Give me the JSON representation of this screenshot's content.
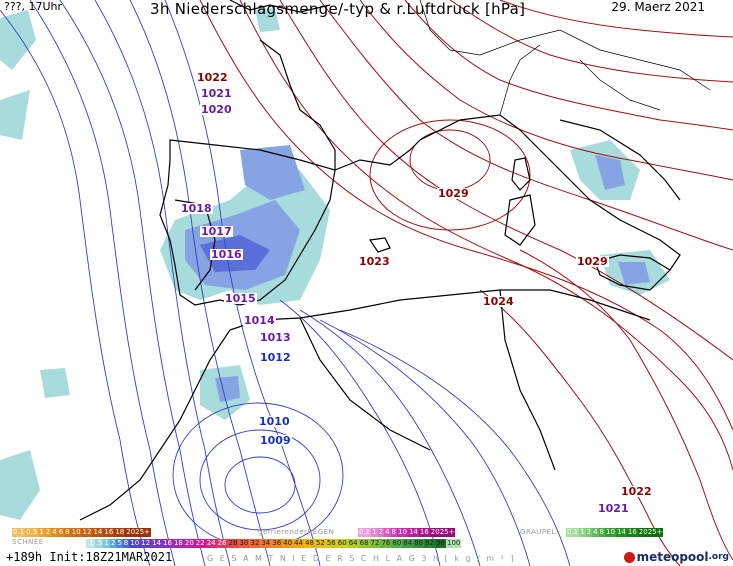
{
  "header": {
    "left": "???, 17Uhr",
    "center": "3h Niederschlagsmenge/-typ & r.Luftdruck [hPa]",
    "right": "29. Maerz 2021"
  },
  "isobar_labels": [
    {
      "text": "1022",
      "tone": "red"
    },
    {
      "text": "1021",
      "tone": "purple"
    },
    {
      "text": "1020",
      "tone": "purple"
    },
    {
      "text": "1018",
      "tone": "purple"
    },
    {
      "text": "1017",
      "tone": "purple"
    },
    {
      "text": "1016",
      "tone": "purple"
    },
    {
      "text": "1015",
      "tone": "purple"
    },
    {
      "text": "1014",
      "tone": "purple"
    },
    {
      "text": "1013",
      "tone": "purple"
    },
    {
      "text": "1012",
      "tone": "blue"
    },
    {
      "text": "1010",
      "tone": "blue"
    },
    {
      "text": "1009",
      "tone": "blue"
    },
    {
      "text": "1029",
      "tone": "red"
    },
    {
      "text": "1023",
      "tone": "red"
    },
    {
      "text": "1024",
      "tone": "red"
    },
    {
      "text": "1029",
      "tone": "red"
    },
    {
      "text": "1022",
      "tone": "red"
    },
    {
      "text": "1021",
      "tone": "purple"
    }
  ],
  "legend": {
    "snow_title": "SCHNEE",
    "snow_values": [
      "0.1",
      "0.5",
      "1",
      "2",
      "4",
      "6",
      "8",
      "10",
      "12",
      "14",
      "16",
      "18",
      "2025+"
    ],
    "freezing_title": "gefrierenderREGEN",
    "freezing_values": [
      "0.1",
      "1",
      "2",
      "4",
      "8",
      "10",
      "14",
      "16",
      "2025+"
    ],
    "graupel_title": "GRAUPEL",
    "graupel_values": [
      "0.1",
      "1",
      "2",
      "4",
      "8",
      "10",
      "14",
      "16",
      "2025+"
    ],
    "total_title": "G E S A M T N I E D E R S C H L A G   3 h   [ k g / m ² ]",
    "total_values": [
      ".1",
      ".5",
      "1",
      "2",
      "5",
      "8",
      "10",
      "12",
      "14",
      "16",
      "18",
      "20",
      "22",
      "24",
      "26",
      "28",
      "30",
      "32",
      "34",
      "36",
      "40",
      "44",
      "48",
      "52",
      "56",
      "60",
      "64",
      "68",
      "72",
      "76",
      "80",
      "84",
      "88",
      "92",
      "96",
      "100"
    ],
    "snow_color": "#e8a020",
    "freezing_color": "#e040c0",
    "graupel_color": "#40b040"
  },
  "footer": {
    "run_info": "+189h Init:18Z21MAR2021",
    "logo_text": "meteopool",
    "logo_tld": ".org"
  },
  "colors": {
    "isobar_high": "#a01010",
    "isobar_low": "#3040c8",
    "coast": "#000000",
    "precip_light": "#9fd8d8",
    "precip_mid": "#7a9ae0",
    "precip_heavy": "#4a60d8"
  }
}
